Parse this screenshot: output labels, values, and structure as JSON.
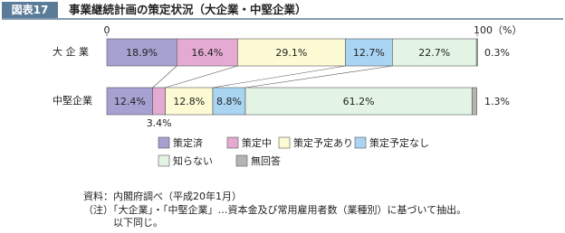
{
  "header": {
    "badge": "図表17",
    "title": "事業継続計画の策定状況（大企業・中堅企業）"
  },
  "chart_data": {
    "type": "stacked-bar-horizontal",
    "categories": [
      "大 企 業",
      "中堅企業"
    ],
    "xlim": [
      0,
      100
    ],
    "xticks": [
      0,
      {
        "value": 100,
        "label": "100（%）"
      }
    ],
    "series": [
      {
        "name": "策定済",
        "color": "#a6a1d1",
        "values": [
          18.9,
          12.4
        ],
        "value_labels": [
          "18.9%",
          "12.4%"
        ]
      },
      {
        "name": "策定中",
        "color": "#e4aad2",
        "values": [
          16.4,
          3.4
        ],
        "value_labels": [
          "16.4%",
          "3.4%"
        ]
      },
      {
        "name": "策定予定あり",
        "color": "#fdfbd3",
        "values": [
          29.1,
          12.8
        ],
        "value_labels": [
          "29.1%",
          "12.8%"
        ]
      },
      {
        "name": "策定予定なし",
        "color": "#a9d4f2",
        "values": [
          12.7,
          8.8
        ],
        "value_labels": [
          "12.7%",
          "8.8%"
        ]
      },
      {
        "name": "知らない",
        "color": "#e3f4e4",
        "values": [
          22.7,
          61.2
        ],
        "value_labels": [
          "22.7%",
          "61.2%"
        ]
      },
      {
        "name": "無回答",
        "color": "#b4b4b4",
        "values": [
          0.3,
          1.3
        ],
        "value_labels": [
          "0.3%",
          "1.3%"
        ]
      }
    ]
  },
  "notes": [
    "資料：内閣府調べ（平成20年1月）",
    "（注）「大企業」・「中堅企業」…資本金及び常用雇用者数（業種別）に基づいて抽出。",
    "以下同じ。"
  ]
}
